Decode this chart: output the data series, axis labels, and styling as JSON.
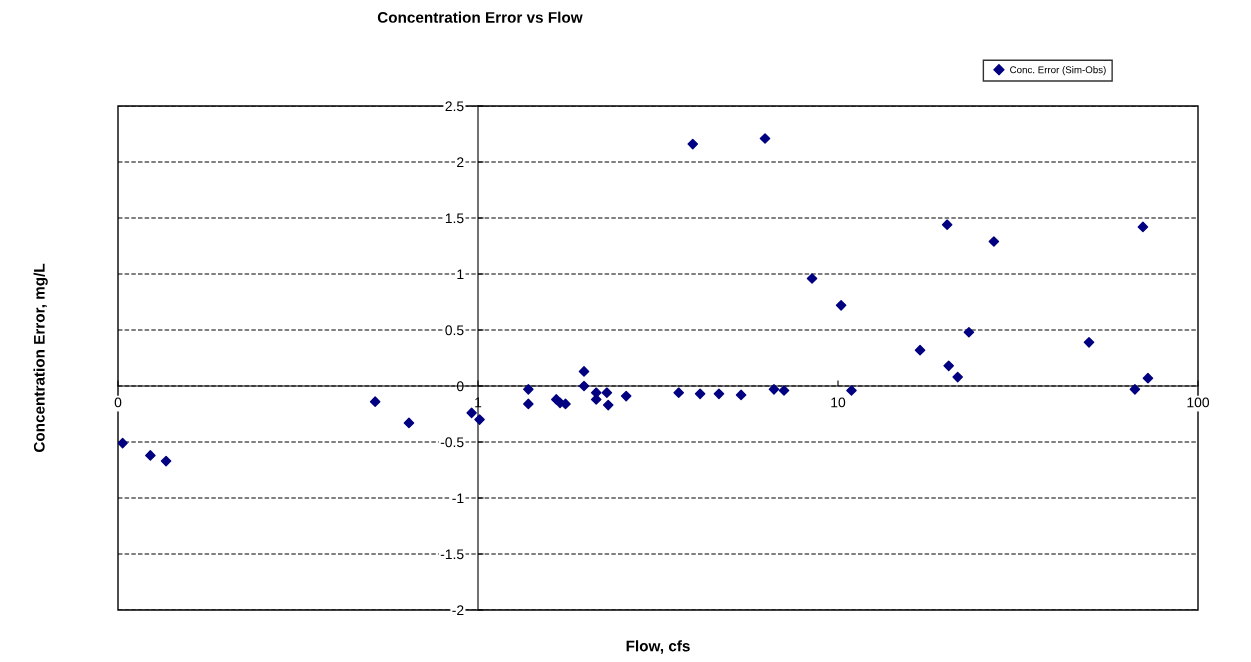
{
  "chart_data": {
    "type": "scatter",
    "title": "Concentration Error vs Flow",
    "xlabel": "Flow, cfs",
    "ylabel": "Concentration Error, mg/L",
    "log": "x",
    "grid": "y",
    "legend": "top right",
    "marker": "diamond",
    "xlim": [
      0.1,
      100
    ],
    "xticks": [
      {
        "value": 0.1,
        "label": "0"
      },
      1,
      10,
      100
    ],
    "ylim": [
      -2,
      2.5
    ],
    "yticks": [
      -2,
      -1.5,
      -1,
      -0.5,
      0,
      0.5,
      1,
      1.5,
      2,
      2.5
    ],
    "series": [
      {
        "name": "Conc. Error (Sim-Obs)",
        "color": "#000080",
        "x": [
          0.103,
          0.123,
          0.136,
          0.518,
          0.643,
          0.96,
          1.01,
          1.38,
          1.38,
          1.65,
          1.69,
          1.75,
          1.97,
          1.97,
          2.13,
          2.13,
          2.28,
          2.3,
          2.58,
          3.61,
          4.14,
          4.67,
          5.38,
          6.64,
          7.08,
          10.9,
          3.95,
          6.27,
          8.47,
          10.2,
          20.1,
          27.1,
          70.3,
          16.9,
          20.3,
          21.5,
          23.1,
          49.8,
          66.8,
          72.6
        ],
        "values": [
          -0.51,
          -0.62,
          -0.67,
          -0.14,
          -0.33,
          -0.24,
          -0.3,
          -0.03,
          -0.16,
          -0.12,
          -0.15,
          -0.16,
          0.13,
          0.0,
          -0.06,
          -0.12,
          -0.06,
          -0.17,
          -0.09,
          -0.06,
          -0.07,
          -0.07,
          -0.08,
          -0.03,
          -0.04,
          -0.04,
          2.16,
          2.21,
          0.96,
          0.72,
          1.44,
          1.29,
          1.42,
          0.32,
          0.18,
          0.08,
          0.48,
          0.39,
          -0.03,
          0.07
        ]
      }
    ]
  }
}
